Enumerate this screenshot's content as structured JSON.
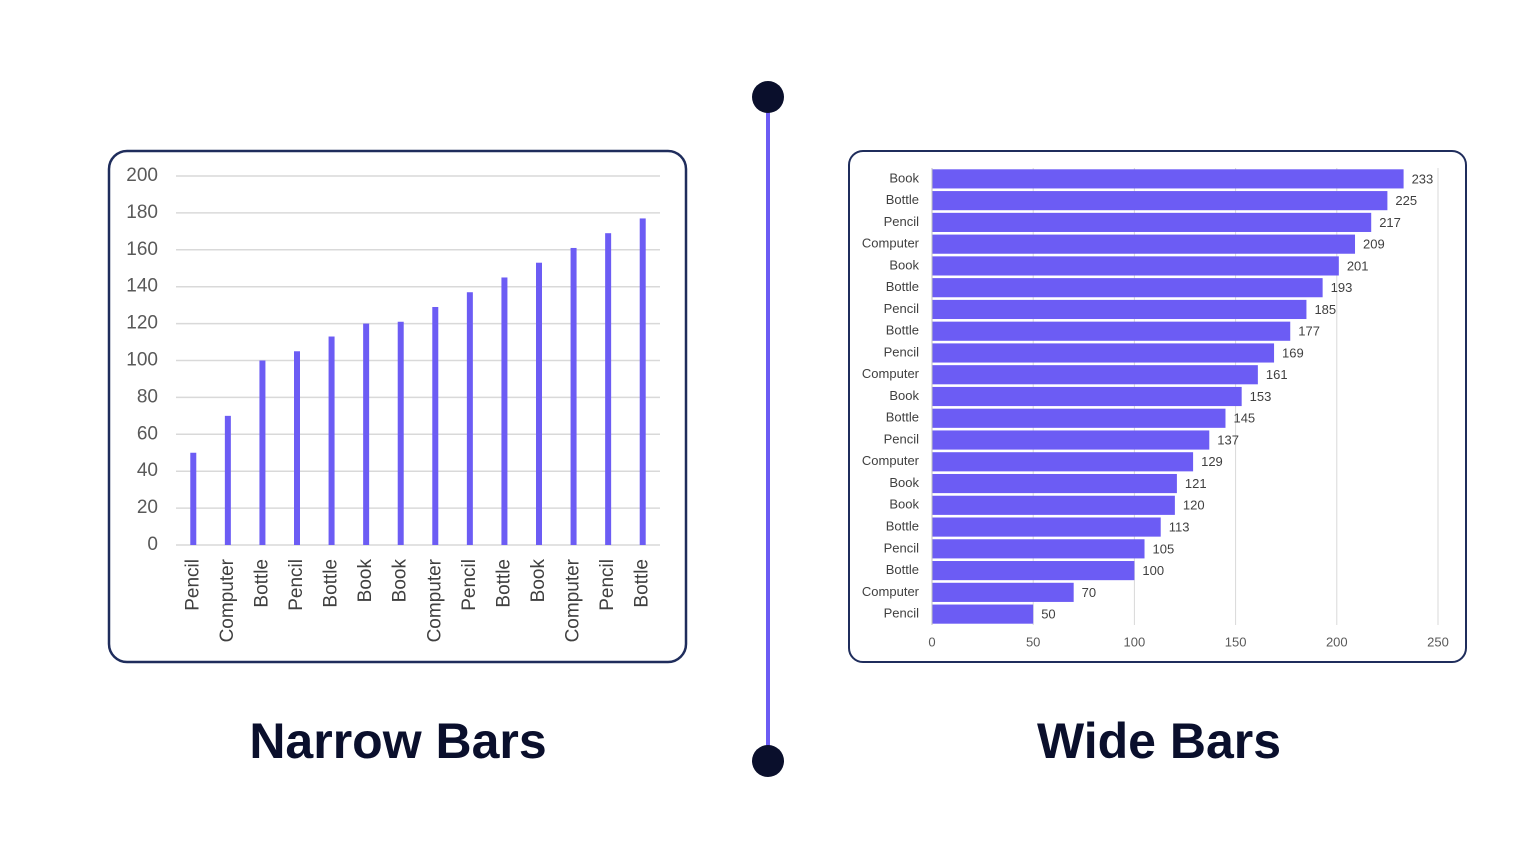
{
  "chart_data": [
    {
      "type": "bar",
      "title": "Narrow Bars",
      "categories": [
        "Pencil",
        "Computer",
        "Bottle",
        "Pencil",
        "Bottle",
        "Book",
        "Book",
        "Computer",
        "Pencil",
        "Bottle",
        "Book",
        "Computer",
        "Pencil",
        "Bottle"
      ],
      "values": [
        50,
        70,
        100,
        105,
        113,
        120,
        121,
        129,
        137,
        145,
        153,
        161,
        169,
        177
      ],
      "color": "#6c5cf4",
      "ylim": [
        0,
        200
      ],
      "yticks": [
        0,
        20,
        40,
        60,
        80,
        100,
        120,
        140,
        160,
        180,
        200
      ],
      "grid": true
    },
    {
      "type": "barh",
      "title": "Wide Bars",
      "categories": [
        "Book",
        "Bottle",
        "Pencil",
        "Computer",
        "Book",
        "Bottle",
        "Pencil",
        "Bottle",
        "Pencil",
        "Computer",
        "Book",
        "Bottle",
        "Pencil",
        "Computer",
        "Book",
        "Book",
        "Bottle",
        "Pencil",
        "Bottle",
        "Computer",
        "Pencil"
      ],
      "values": [
        233,
        225,
        217,
        209,
        201,
        193,
        185,
        177,
        169,
        161,
        153,
        145,
        137,
        129,
        121,
        120,
        113,
        105,
        100,
        70,
        50
      ],
      "color": "#6c5cf4",
      "xlim": [
        0,
        250
      ],
      "xticks": [
        0,
        50,
        100,
        150,
        200,
        250
      ],
      "grid": true,
      "data_labels": true
    }
  ]
}
